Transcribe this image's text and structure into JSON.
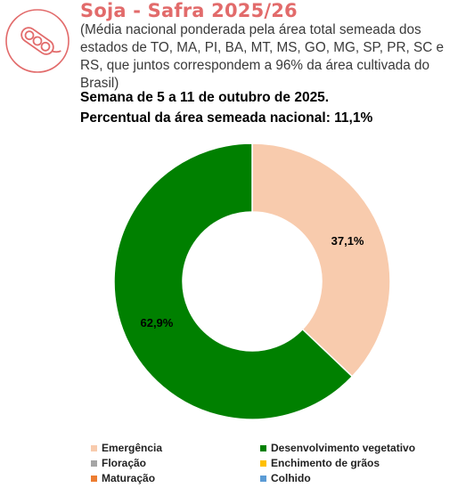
{
  "header": {
    "title": "Soja - Safra 2025/26",
    "subtitle": "(Média nacional ponderada pela área total semeada dos estados de TO, MA, PI, BA, MT, MS, GO, MG, SP, PR, SC e RS, que juntos correspondem a 96% da área cultivada do Brasil)",
    "week": "Semana de 5 a 11 de outubro de 2025.",
    "national_percent": "Percentual da área semeada nacional: 11,1%"
  },
  "logo": {
    "icon": "soybean-pod-icon",
    "color": "#e26b6b"
  },
  "chart_data": {
    "type": "pie",
    "style": "donut",
    "categories": [
      "Emergência",
      "Desenvolvimento vegetativo",
      "Floração",
      "Enchimento de grãos",
      "Maturação",
      "Colhido"
    ],
    "values": [
      37.1,
      62.9,
      0,
      0,
      0,
      0
    ],
    "data_labels": [
      "37,1%",
      "62,9%",
      "",
      "",
      "",
      ""
    ],
    "colors": [
      "#f8cbad",
      "#008000",
      "#a5a5a5",
      "#ffc000",
      "#ed7d31",
      "#5b9bd5"
    ],
    "legend_position": "bottom"
  }
}
